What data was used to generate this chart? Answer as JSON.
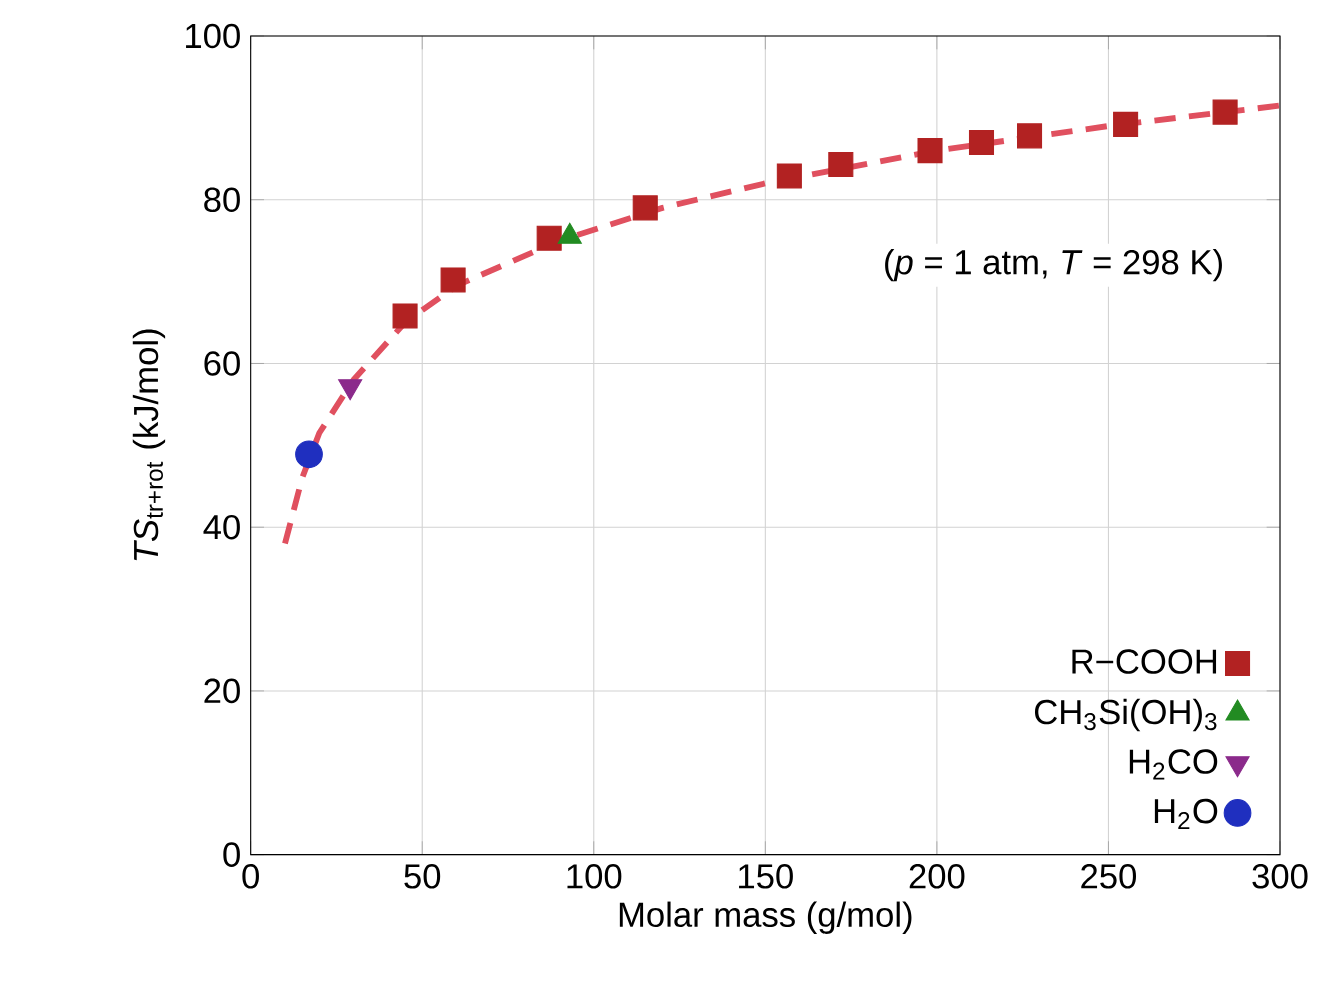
{
  "chart_data": {
    "type": "scatter",
    "xlabel": "Molar mass (g/mol)",
    "ylabel": "*TS*$_{tr+rot}$ (kJ/mol)",
    "xlim": [
      0,
      300
    ],
    "ylim": [
      0,
      100
    ],
    "xticks": [
      0,
      50,
      100,
      150,
      200,
      250,
      300
    ],
    "yticks": [
      0,
      20,
      40,
      60,
      80,
      100
    ],
    "grid": true,
    "legend": "bottom right",
    "annotations": [
      "(*p* = 1 atm, *T* = 298 K)"
    ],
    "series": [
      {
        "type": "line",
        "line_style": "dashed",
        "marker": "none",
        "color": "#e0505f",
        "x": [
          10,
          15,
          20,
          30,
          45,
          60,
          90,
          120,
          150,
          200,
          250,
          300
        ],
        "values": [
          38,
          46,
          51.5,
          58,
          65,
          69.5,
          75,
          79,
          82,
          86,
          89,
          91.5
        ]
      },
      {
        "name": "R−COOH",
        "marker": "square",
        "color": "#b22222",
        "x": [
          45,
          59,
          87,
          115,
          157,
          172,
          198,
          213,
          227,
          255,
          284
        ],
        "values": [
          65.8,
          70.2,
          75.3,
          79,
          82.9,
          84.3,
          86,
          87,
          87.8,
          89.2,
          90.7
        ]
      },
      {
        "name": "CH$_{3}$Si(OH)$_{3}$",
        "marker": "triangle",
        "color": "#228b22",
        "x": [
          93
        ],
        "values": [
          75.5
        ]
      },
      {
        "name": "H$_{2}$CO",
        "marker": "triangle down",
        "color": "#8b2a8b",
        "x": [
          29
        ],
        "values": [
          57.2
        ]
      },
      {
        "name": "H$_{2}$O",
        "marker": "circle",
        "color": "#1f2fbf",
        "x": [
          17
        ],
        "values": [
          48.9
        ]
      }
    ]
  }
}
